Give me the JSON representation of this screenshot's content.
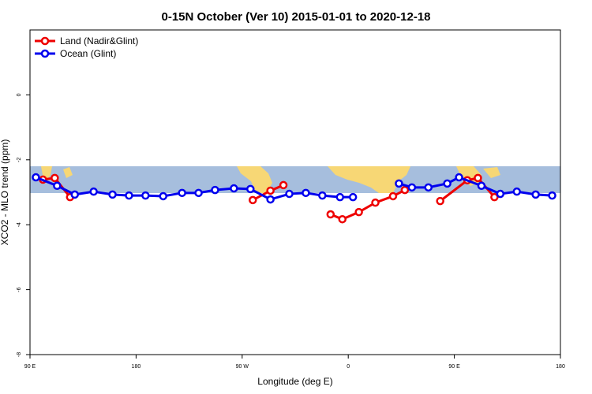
{
  "chart_data": {
    "type": "line",
    "title": "0-15N October (Ver 10)   2015-01-01 to 2020-12-18",
    "x_label": "Longitude (deg E)",
    "y_label": "XCO2 - MLO trend (ppm)",
    "xlim": [
      90,
      540
    ],
    "ylim": [
      -8,
      2
    ],
    "xticks": [
      {
        "value": 90,
        "label": "90 E"
      },
      180,
      {
        "value": 270,
        "label": "90 W"
      },
      {
        "value": 360,
        "label": "0"
      },
      {
        "value": 450,
        "label": "90 E"
      },
      {
        "value": 540,
        "label": "180"
      }
    ],
    "yticks": [
      0,
      -2,
      -4,
      -6,
      -8
    ],
    "legend": "top-left",
    "series": [
      {
        "name": "Land (Nadir&Glint)",
        "color": "#ee0000",
        "x": [
          101,
          111,
          124,
          200,
          279,
          294,
          305,
          325,
          345,
          355,
          369,
          383,
          398,
          408,
          420,
          438,
          461,
          470,
          484
        ],
        "values": [
          -2.61,
          -2.56,
          -3.15,
          null,
          -3.24,
          -2.95,
          -2.78,
          null,
          -3.68,
          -3.83,
          -3.61,
          -3.32,
          -3.12,
          -2.93,
          null,
          -3.27,
          -2.63,
          -2.56,
          -3.15
        ]
      },
      {
        "name": "Ocean (Glint)",
        "color": "#0000ee",
        "x": [
          95,
          113,
          128,
          144,
          160,
          174,
          188,
          203,
          219,
          233,
          247,
          263,
          277,
          294,
          310,
          324,
          338,
          353,
          364,
          383,
          403,
          414,
          428,
          444,
          454,
          473,
          489,
          503,
          519,
          533
        ],
        "values": [
          -2.54,
          -2.8,
          -3.07,
          -2.98,
          -3.07,
          -3.1,
          -3.1,
          -3.12,
          -3.02,
          -3.02,
          -2.93,
          -2.88,
          -2.9,
          -3.22,
          -3.05,
          -3.02,
          -3.1,
          -3.15,
          -3.15,
          null,
          -2.73,
          -2.85,
          -2.85,
          -2.73,
          -2.54,
          -2.8,
          -3.05,
          -2.98,
          -3.07,
          -3.1
        ]
      }
    ]
  }
}
